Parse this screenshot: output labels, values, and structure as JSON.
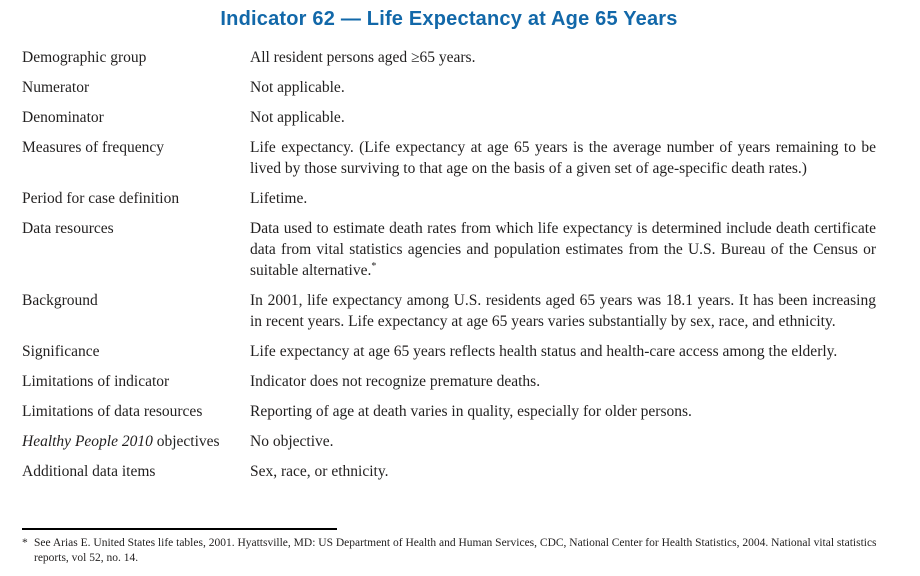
{
  "title": "Indicator 62 — Life Expectancy at Age 65 Years",
  "rows": [
    {
      "label": "Demographic group",
      "value": "All resident persons aged ≥65 years.",
      "justify": false
    },
    {
      "label": "Numerator",
      "value": "Not applicable.",
      "justify": false
    },
    {
      "label": "Denominator",
      "value": "Not applicable.",
      "justify": false
    },
    {
      "label": "Measures of frequency",
      "value": "Life expectancy. (Life expectancy at age 65 years is the average number of years remaining to be lived by those surviving to that age on the basis of a given set of age-specific death rates.)",
      "justify": true
    },
    {
      "label": "Period for case definition",
      "value": "Lifetime.",
      "justify": false
    },
    {
      "label": "Data resources",
      "value": "Data used to estimate death rates from which life expectancy is determined include death certificate data from vital statistics agencies and population estimates from the U.S. Bureau of the Census or suitable alternative.",
      "value_sup": "*",
      "justify": true
    },
    {
      "label": "Background",
      "value": "In 2001, life expectancy among U.S. residents aged 65 years was 18.1 years. It has been increasing in recent years. Life expectancy at age 65 years varies substantially by sex, race, and ethnicity.",
      "justify": true
    },
    {
      "label": "Significance",
      "value": "Life expectancy at age 65 years reflects health status and health-care access among the elderly.",
      "justify": false
    },
    {
      "label": "Limitations of indicator",
      "value": "Indicator does not recognize premature deaths.",
      "justify": false
    },
    {
      "label": "Limitations of data resources",
      "value": "Reporting of age at death varies in quality, especially for older persons.",
      "justify": false
    },
    {
      "label_italic": "Healthy People 2010",
      "label": "objectives",
      "value": "No objective.",
      "justify": false
    },
    {
      "label": "Additional data items",
      "value": "Sex, race, or ethnicity.",
      "justify": false
    }
  ],
  "footnote": {
    "marker": "*",
    "text": "See Arias E. United States life tables, 2001. Hyattsville, MD: US Department of Health and Human Services, CDC, National Center for Health Statistics, 2004. National vital statistics reports, vol 52, no. 14."
  }
}
